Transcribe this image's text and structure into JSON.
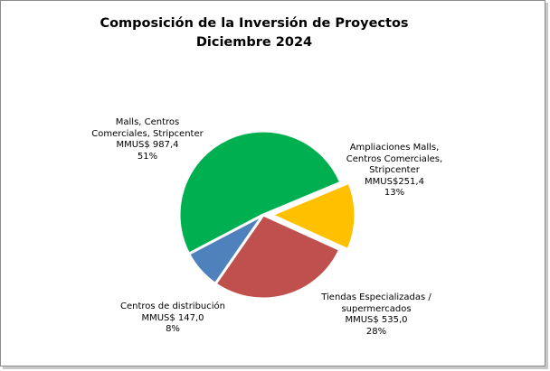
{
  "chart_data": {
    "type": "pie",
    "title": "Composición de la Inversión de Proyectos",
    "subtitle": "Diciembre 2024",
    "slices": [
      {
        "label_lines": [
          "Malls, Centros",
          "Comerciales, Stripcenter",
          "MMUS$ 987,4",
          "51%"
        ],
        "value": 987.4,
        "percent": "51%",
        "color": "#00B050",
        "exploded": false
      },
      {
        "label_lines": [
          "Ampliaciones Malls,",
          "Centros Comerciales,",
          "Stripcenter",
          "MMUS$251,4",
          "13%"
        ],
        "value": 251.4,
        "percent": "13%",
        "color": "#FFC000",
        "exploded": true
      },
      {
        "label_lines": [
          "Tiendas Especializadas /",
          "supermercados",
          "MMUS$ 535,0",
          "28%"
        ],
        "value": 535.0,
        "percent": "28%",
        "color": "#C0504D",
        "exploded": false
      },
      {
        "label_lines": [
          "Centros de distribución",
          "MMUS$ 147,0",
          "8%"
        ],
        "value": 147.0,
        "percent": "8%",
        "color": "#4F81BD",
        "exploded": false
      }
    ],
    "legend": "none"
  }
}
